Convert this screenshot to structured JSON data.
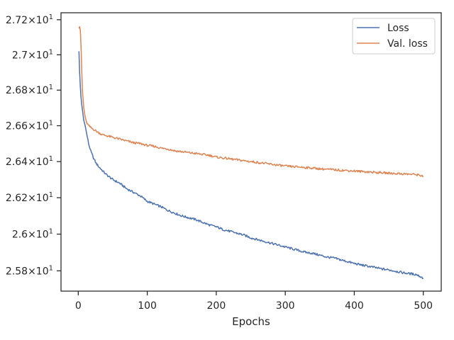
{
  "chart_data": {
    "type": "line",
    "title": "",
    "xlabel": "Epochs",
    "ylabel": "",
    "yscale": "log",
    "xlim": [
      -25,
      526
    ],
    "ylim": [
      25.69,
      27.24
    ],
    "grid": false,
    "legend_placement": "top-right",
    "x_ticks": [
      0,
      100,
      200,
      300,
      400,
      500
    ],
    "x_tick_labels": [
      "0",
      "100",
      "200",
      "300",
      "400",
      "500"
    ],
    "y_ticks": [
      25.8,
      26.0,
      26.2,
      26.4,
      26.6,
      26.8,
      27.0,
      27.2
    ],
    "y_tick_labels": [
      {
        "base": "2.58",
        "exp": "1"
      },
      {
        "base": "2.6",
        "exp": "1"
      },
      {
        "base": "2.62",
        "exp": "1"
      },
      {
        "base": "2.64",
        "exp": "1"
      },
      {
        "base": "2.66",
        "exp": "1"
      },
      {
        "base": "2.68",
        "exp": "1"
      },
      {
        "base": "2.7",
        "exp": "1"
      },
      {
        "base": "2.72",
        "exp": "1"
      }
    ],
    "y_tick_multiplier": "×10",
    "series": [
      {
        "name": "Loss",
        "color": "#4c72b0",
        "x": [
          1,
          2,
          3,
          4,
          5,
          6,
          8,
          10,
          12,
          15,
          18,
          22,
          26,
          30,
          35,
          40,
          50,
          60,
          70,
          80,
          90,
          100,
          110,
          120,
          130,
          140,
          150,
          160,
          170,
          180,
          190,
          200,
          210,
          220,
          230,
          240,
          250,
          260,
          270,
          280,
          290,
          300,
          310,
          320,
          330,
          340,
          350,
          360,
          370,
          380,
          390,
          400,
          410,
          420,
          430,
          440,
          450,
          460,
          470,
          480,
          490,
          500
        ],
        "y": [
          27.02,
          26.9,
          26.82,
          26.76,
          26.72,
          26.69,
          26.63,
          26.6,
          26.56,
          26.5,
          26.46,
          26.42,
          26.39,
          26.37,
          26.35,
          26.33,
          26.3,
          26.28,
          26.25,
          26.23,
          26.21,
          26.18,
          26.165,
          26.15,
          26.13,
          26.115,
          26.1,
          26.09,
          26.08,
          26.065,
          26.05,
          26.04,
          26.025,
          26.015,
          26.005,
          25.995,
          25.98,
          25.97,
          25.96,
          25.95,
          25.94,
          25.93,
          25.92,
          25.91,
          25.9,
          25.895,
          25.885,
          25.875,
          25.87,
          25.86,
          25.85,
          25.84,
          25.832,
          25.825,
          25.818,
          25.81,
          25.805,
          25.798,
          25.79,
          25.785,
          25.78,
          25.76
        ]
      },
      {
        "name": "Val. loss",
        "color": "#dd8452",
        "x": [
          1,
          2,
          3,
          4,
          5,
          6,
          8,
          10,
          12,
          15,
          18,
          22,
          26,
          30,
          35,
          40,
          50,
          60,
          70,
          80,
          90,
          100,
          110,
          120,
          130,
          140,
          150,
          160,
          170,
          180,
          190,
          200,
          210,
          220,
          230,
          240,
          250,
          260,
          270,
          280,
          290,
          300,
          310,
          320,
          330,
          340,
          350,
          360,
          370,
          380,
          390,
          400,
          410,
          420,
          430,
          440,
          450,
          460,
          470,
          480,
          490,
          500
        ],
        "y": [
          27.15,
          27.16,
          27.14,
          27.05,
          26.92,
          26.8,
          26.7,
          26.65,
          26.62,
          26.6,
          26.59,
          26.58,
          26.57,
          26.56,
          26.55,
          26.545,
          26.535,
          26.525,
          26.515,
          26.505,
          26.5,
          26.49,
          26.485,
          26.475,
          26.47,
          26.46,
          26.455,
          26.45,
          26.445,
          26.44,
          26.435,
          26.425,
          26.42,
          26.415,
          26.41,
          26.405,
          26.4,
          26.395,
          26.39,
          26.385,
          26.38,
          26.375,
          26.372,
          26.37,
          26.367,
          26.364,
          26.36,
          26.357,
          26.355,
          26.352,
          26.35,
          26.348,
          26.345,
          26.343,
          26.34,
          26.338,
          26.336,
          26.334,
          26.332,
          26.33,
          26.328,
          26.32
        ]
      }
    ]
  }
}
